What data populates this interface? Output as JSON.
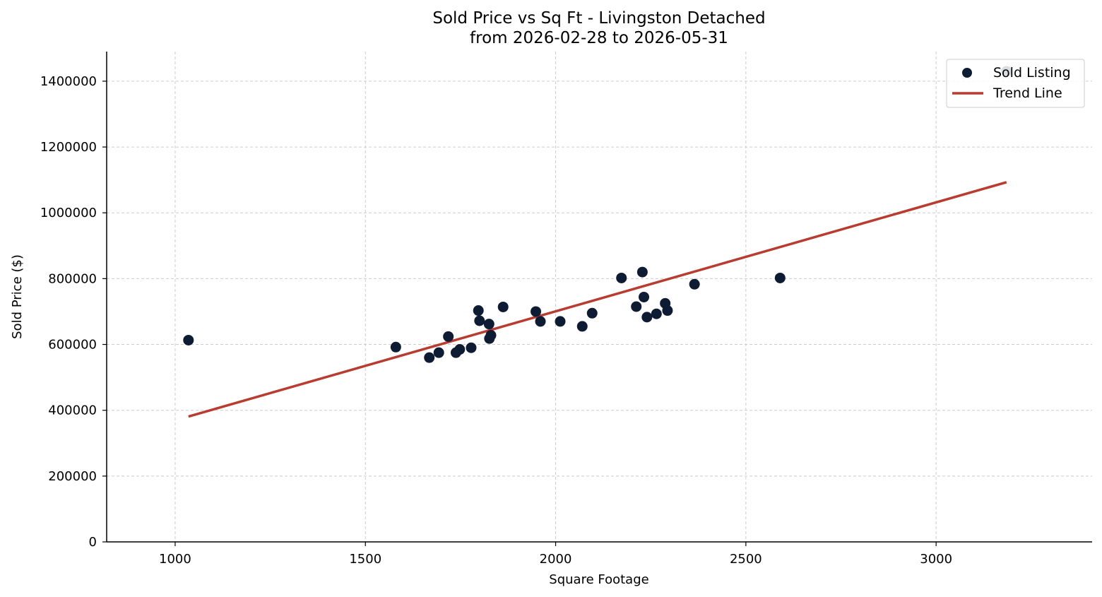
{
  "chart_data": {
    "type": "scatter",
    "title": "Sold Price vs Sq Ft - Livingston Detached",
    "subtitle": "from 2026-02-28 to 2026-05-31",
    "xlabel": "Square Footage",
    "ylabel": "Sold Price ($)",
    "xlim": [
      820,
      3410
    ],
    "ylim": [
      0,
      1490000
    ],
    "xticks": [
      1000,
      1500,
      2000,
      2500,
      3000
    ],
    "yticks": [
      0,
      200000,
      400000,
      600000,
      800000,
      1000000,
      1200000,
      1400000
    ],
    "grid": true,
    "legend_position": "top-right",
    "colors": {
      "points": "#0d1b33",
      "trend": "#b83c30"
    },
    "series": [
      {
        "name": "Sold Listing",
        "kind": "scatter",
        "x": [
          1035,
          1580,
          1668,
          1693,
          1718,
          1738,
          1748,
          1778,
          1797,
          1800,
          1825,
          1826,
          1830,
          1862,
          1948,
          1960,
          2012,
          2070,
          2096,
          2173,
          2212,
          2228,
          2232,
          2240,
          2265,
          2288,
          2294,
          2365,
          2590,
          3185
        ],
        "y": [
          613000,
          592000,
          560000,
          575000,
          624000,
          575000,
          585000,
          590000,
          703000,
          672000,
          662000,
          618000,
          628000,
          714000,
          700000,
          670000,
          670000,
          655000,
          695000,
          802000,
          715000,
          820000,
          744000,
          683000,
          693000,
          725000,
          703000,
          783000,
          802000,
          1430000
        ]
      },
      {
        "name": "Trend Line",
        "kind": "line",
        "x": [
          1035,
          3185
        ],
        "y": [
          381000,
          1093000
        ]
      }
    ]
  }
}
